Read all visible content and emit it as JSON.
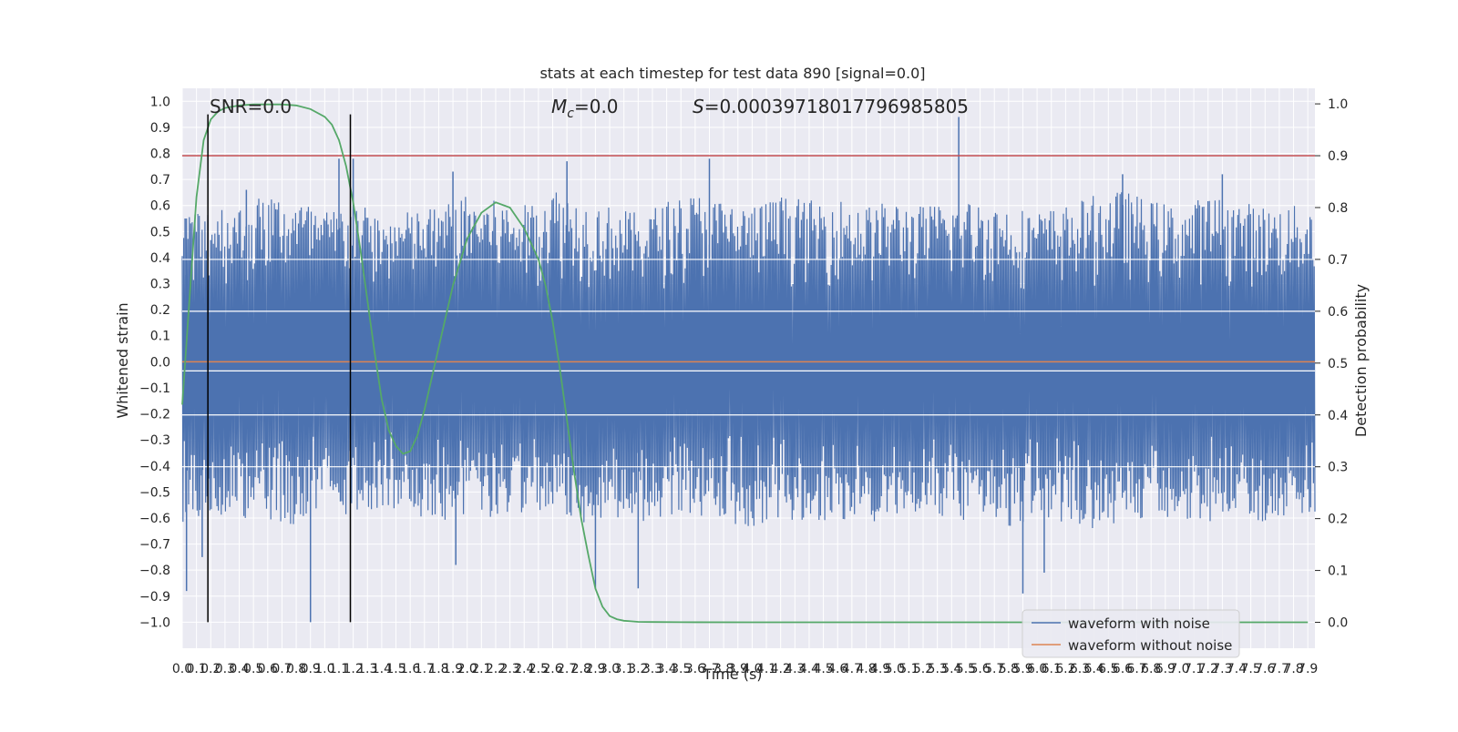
{
  "chart_data": {
    "type": "line",
    "title": "stats at each timestep for test data 890 [signal=0.0]",
    "xlabel": "Time (s)",
    "ylabel": "Whitened strain",
    "y2label": "Detection probability",
    "xlim": [
      0.0,
      7.95
    ],
    "ylim": [
      -1.1,
      1.05
    ],
    "y2lim": [
      -0.05,
      1.03
    ],
    "xticks": [
      0.0,
      0.1,
      0.2,
      0.3,
      0.4,
      0.5,
      0.6,
      0.7,
      0.8,
      0.9,
      1.0,
      1.1,
      1.2,
      1.3,
      1.4,
      1.5,
      1.6,
      1.7,
      1.8,
      1.9,
      2.0,
      2.1,
      2.2,
      2.3,
      2.4,
      2.5,
      2.6,
      2.7,
      2.8,
      2.9,
      3.0,
      3.1,
      3.2,
      3.3,
      3.4,
      3.5,
      3.6,
      3.7,
      3.8,
      3.9,
      4.0,
      4.1,
      4.2,
      4.3,
      4.4,
      4.5,
      4.6,
      4.7,
      4.8,
      4.9,
      5.0,
      5.1,
      5.2,
      5.3,
      5.4,
      5.5,
      5.6,
      5.7,
      5.8,
      5.9,
      6.0,
      6.1,
      6.2,
      6.3,
      6.4,
      6.5,
      6.6,
      6.7,
      6.8,
      6.9,
      7.0,
      7.1,
      7.2,
      7.3,
      7.4,
      7.5,
      7.6,
      7.7,
      7.8,
      7.9
    ],
    "yticks": [
      -1.0,
      -0.9,
      -0.8,
      -0.7,
      -0.6,
      -0.5,
      -0.4,
      -0.3,
      -0.2,
      -0.1,
      0.0,
      0.1,
      0.2,
      0.3,
      0.4,
      0.5,
      0.6,
      0.7,
      0.8,
      0.9,
      1.0
    ],
    "y2ticks": [
      0.0,
      0.1,
      0.2,
      0.3,
      0.4,
      0.5,
      0.6,
      0.7,
      0.8,
      0.9,
      1.0
    ],
    "grid": true,
    "legend_position": "bottom-right",
    "annotations": {
      "snr": "SNR=0.0",
      "mc": "M_c=0.0",
      "s": "S=0.00039718017796985805"
    },
    "series": [
      {
        "name": "waveform with noise",
        "color": "#4c72b0",
        "envelope": {
          "x": [
            0.0,
            0.2,
            0.4,
            0.6,
            0.8,
            1.0,
            1.2,
            1.4,
            1.6,
            1.8,
            2.0,
            2.2,
            2.4,
            2.6,
            2.8,
            3.0,
            3.2,
            3.4,
            3.6,
            3.8,
            4.0,
            4.2,
            4.4,
            4.6,
            4.8,
            5.0,
            5.2,
            5.4,
            5.6,
            5.8,
            6.0,
            6.2,
            6.4,
            6.6,
            6.8,
            7.0,
            7.2,
            7.4,
            7.6,
            7.8,
            7.95
          ],
          "upper": [
            0.55,
            0.62,
            0.6,
            0.65,
            0.63,
            0.58,
            0.62,
            0.56,
            0.58,
            0.6,
            0.64,
            0.62,
            0.6,
            0.68,
            0.62,
            0.6,
            0.57,
            0.62,
            0.65,
            0.62,
            0.6,
            0.64,
            0.62,
            0.63,
            0.6,
            0.62,
            0.6,
            0.62,
            0.62,
            0.6,
            0.58,
            0.6,
            0.64,
            0.66,
            0.62,
            0.6,
            0.64,
            0.62,
            0.6,
            0.6,
            0.62
          ],
          "lower": [
            -0.62,
            -0.58,
            -0.6,
            -0.62,
            -0.64,
            -0.6,
            -0.58,
            -0.56,
            -0.58,
            -0.62,
            -0.6,
            -0.6,
            -0.58,
            -0.6,
            -0.62,
            -0.6,
            -0.62,
            -0.6,
            -0.62,
            -0.62,
            -0.64,
            -0.6,
            -0.62,
            -0.6,
            -0.62,
            -0.6,
            -0.58,
            -0.62,
            -0.62,
            -0.64,
            -0.6,
            -0.62,
            -0.64,
            -0.62,
            -0.6,
            -0.6,
            -0.62,
            -0.6,
            -0.62,
            -0.6,
            -0.58
          ]
        },
        "spikes": [
          {
            "x": 0.02,
            "y": 0.55
          },
          {
            "x": 0.03,
            "y": -0.88
          },
          {
            "x": 0.14,
            "y": -0.75
          },
          {
            "x": 0.45,
            "y": 0.66
          },
          {
            "x": 0.9,
            "y": -1.0
          },
          {
            "x": 1.1,
            "y": 0.78
          },
          {
            "x": 1.2,
            "y": 0.78
          },
          {
            "x": 1.9,
            "y": 0.73
          },
          {
            "x": 1.92,
            "y": -0.78
          },
          {
            "x": 2.7,
            "y": 0.77
          },
          {
            "x": 2.9,
            "y": -0.87
          },
          {
            "x": 3.2,
            "y": -0.87
          },
          {
            "x": 3.7,
            "y": 0.78
          },
          {
            "x": 5.45,
            "y": 0.94
          },
          {
            "x": 5.9,
            "y": -0.89
          },
          {
            "x": 6.05,
            "y": -0.81
          },
          {
            "x": 6.6,
            "y": 0.72
          },
          {
            "x": 7.3,
            "y": 0.72
          }
        ]
      },
      {
        "name": "waveform without noise",
        "color": "#dd8452",
        "x": [
          0.0,
          7.95
        ],
        "y": [
          0.0,
          0.0
        ]
      },
      {
        "name": "",
        "axis": "right",
        "color": "#55a868",
        "x": [
          0.0,
          0.05,
          0.1,
          0.15,
          0.2,
          0.25,
          0.3,
          0.4,
          0.5,
          0.6,
          0.7,
          0.8,
          0.9,
          1.0,
          1.05,
          1.1,
          1.15,
          1.2,
          1.25,
          1.3,
          1.35,
          1.4,
          1.45,
          1.5,
          1.55,
          1.6,
          1.65,
          1.7,
          1.75,
          1.8,
          1.9,
          2.0,
          2.1,
          2.2,
          2.3,
          2.4,
          2.5,
          2.55,
          2.6,
          2.65,
          2.7,
          2.75,
          2.8,
          2.85,
          2.9,
          2.95,
          3.0,
          3.05,
          3.1,
          3.15,
          3.2,
          3.3,
          3.5,
          4.0,
          5.0,
          6.0,
          7.0,
          7.9
        ],
        "y": [
          0.42,
          0.62,
          0.82,
          0.93,
          0.97,
          0.985,
          0.992,
          0.997,
          0.999,
          0.999,
          0.999,
          0.997,
          0.99,
          0.975,
          0.96,
          0.93,
          0.88,
          0.81,
          0.72,
          0.62,
          0.52,
          0.43,
          0.37,
          0.34,
          0.325,
          0.33,
          0.36,
          0.41,
          0.47,
          0.53,
          0.65,
          0.74,
          0.79,
          0.81,
          0.8,
          0.76,
          0.7,
          0.65,
          0.58,
          0.49,
          0.39,
          0.29,
          0.2,
          0.13,
          0.065,
          0.03,
          0.012,
          0.006,
          0.003,
          0.002,
          0.001,
          0.0005,
          0.0002,
          0.0001,
          0.0,
          0.0,
          0.0,
          0.0
        ]
      },
      {
        "name": "",
        "axis": "right",
        "color": "#c44e52",
        "x": [
          0.0,
          7.95
        ],
        "y": [
          0.9,
          0.9
        ]
      }
    ],
    "vlines": [
      {
        "x": 0.18,
        "ymin": -1.0,
        "ymax": 0.95,
        "color": "#000000"
      },
      {
        "x": 1.18,
        "ymin": -1.0,
        "ymax": 0.95,
        "color": "#000000"
      }
    ],
    "hlines": [
      {
        "axis": "right",
        "y": 0.485
      },
      {
        "axis": "right",
        "y": 0.4
      },
      {
        "axis": "right",
        "y": 0.3
      },
      {
        "axis": "right",
        "y": 0.6
      },
      {
        "axis": "right",
        "y": 0.7
      }
    ]
  }
}
